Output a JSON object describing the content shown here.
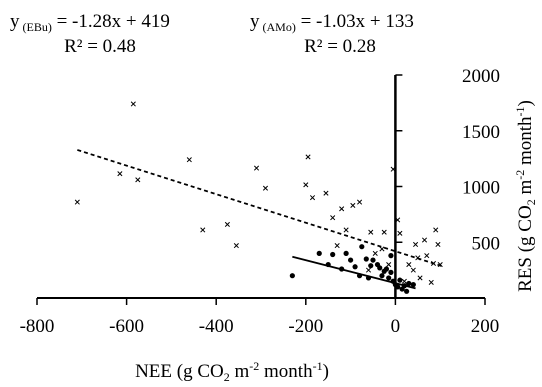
{
  "chart_data": {
    "type": "scatter",
    "xlabel": "NEE (g CO2 m-2 month-1)",
    "ylabel": "RES (g CO2 m-2 month-1)",
    "xlim": [
      -800,
      200
    ],
    "ylim": [
      0,
      2000
    ],
    "x_ticks": [
      -800,
      -600,
      -400,
      -200,
      0,
      200
    ],
    "y_ticks": [
      500,
      1000,
      1500,
      2000
    ],
    "grid": false,
    "legend": "none",
    "equations": [
      {
        "eq": "y (EBu) = -1.28x + 419",
        "r2": "R² = 0.48"
      },
      {
        "eq": "y (AMo) = -1.03x + 133",
        "r2": "R² = 0.28"
      }
    ],
    "series": [
      {
        "marker": "x",
        "color": "#000000",
        "trendline": {
          "slope": -1.28,
          "intercept": 419,
          "style": "dashed",
          "x_range": [
            -710,
            105
          ]
        },
        "points": [
          [
            -710,
            860
          ],
          [
            -615,
            1115
          ],
          [
            -585,
            1740
          ],
          [
            -575,
            1060
          ],
          [
            -460,
            1240
          ],
          [
            -430,
            610
          ],
          [
            -375,
            660
          ],
          [
            -355,
            470
          ],
          [
            -310,
            1165
          ],
          [
            -290,
            985
          ],
          [
            -200,
            1015
          ],
          [
            -195,
            1265
          ],
          [
            -185,
            900
          ],
          [
            -155,
            940
          ],
          [
            -120,
            800
          ],
          [
            -110,
            610
          ],
          [
            -95,
            830
          ],
          [
            -80,
            860
          ],
          [
            -55,
            590
          ],
          [
            -45,
            400
          ],
          [
            -25,
            590
          ],
          [
            -15,
            300
          ],
          [
            -5,
            1155
          ],
          [
            5,
            700
          ],
          [
            10,
            580
          ],
          [
            20,
            150
          ],
          [
            30,
            300
          ],
          [
            40,
            250
          ],
          [
            45,
            480
          ],
          [
            50,
            360
          ],
          [
            55,
            180
          ],
          [
            65,
            520
          ],
          [
            70,
            380
          ],
          [
            80,
            140
          ],
          [
            85,
            310
          ],
          [
            90,
            610
          ],
          [
            95,
            480
          ],
          [
            100,
            300
          ],
          [
            -140,
            720
          ],
          [
            -130,
            470
          ],
          [
            -60,
            250
          ],
          [
            -30,
            440
          ]
        ]
      },
      {
        "marker": "circle",
        "color": "#000000",
        "trendline": {
          "slope": -1.03,
          "intercept": 133,
          "style": "solid",
          "x_range": [
            -230,
            45
          ]
        },
        "points": [
          [
            -230,
            200
          ],
          [
            -170,
            400
          ],
          [
            -150,
            300
          ],
          [
            -140,
            390
          ],
          [
            -120,
            260
          ],
          [
            -100,
            340
          ],
          [
            -90,
            280
          ],
          [
            -80,
            200
          ],
          [
            -75,
            460
          ],
          [
            -65,
            350
          ],
          [
            -55,
            290
          ],
          [
            -50,
            340
          ],
          [
            -40,
            300
          ],
          [
            -35,
            270
          ],
          [
            -25,
            240
          ],
          [
            -20,
            260
          ],
          [
            -15,
            180
          ],
          [
            -10,
            230
          ],
          [
            -5,
            150
          ],
          [
            0,
            120
          ],
          [
            5,
            100
          ],
          [
            10,
            160
          ],
          [
            15,
            80
          ],
          [
            20,
            110
          ],
          [
            25,
            60
          ],
          [
            30,
            130
          ],
          [
            40,
            120
          ],
          [
            -110,
            400
          ],
          [
            -60,
            180
          ],
          [
            -30,
            200
          ],
          [
            -10,
            380
          ]
        ]
      }
    ]
  }
}
